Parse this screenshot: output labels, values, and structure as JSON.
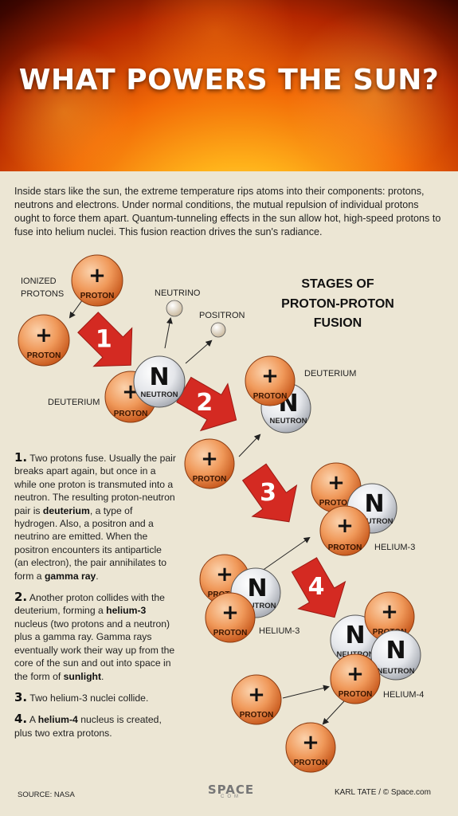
{
  "title": "WHAT POWERS THE SUN?",
  "intro": "Inside stars like the sun, the extreme temperature rips atoms into their components: protons, neutrons and electrons. Under normal conditions, the mutual repulsion of individual protons ought to force them apart. Quantum-tunneling effects in the sun allow hot, high-speed protons to fuse into helium nuclei. This fusion reaction drives the sun's radiance.",
  "stages_title": [
    "STAGES OF",
    "PROTON-PROTON",
    "FUSION"
  ],
  "particles": {
    "proton": "PROTON",
    "neutron": "NEUTRON",
    "plus": "+",
    "n": "N"
  },
  "labels": {
    "ionized_protons": [
      "IONIZED",
      "PROTONS"
    ],
    "neutrino": "NEUTRINO",
    "positron": "POSITRON",
    "deuterium_left": "DEUTERIUM",
    "deuterium_right": "DEUTERIUM",
    "helium3_a": "HELIUM-3",
    "helium3_b": "HELIUM-3",
    "helium4": "HELIUM-4"
  },
  "step_numbers": [
    "1",
    "2",
    "3",
    "4"
  ],
  "steps": {
    "s1": {
      "num": "1.",
      "t1": " Two protons fuse. Usually the pair breaks apart again, but once in a while one proton is transmuted into a neutron.  The resulting proton-neutron pair is ",
      "b1": "deuterium",
      "t2": ", a type of hydrogen. Also, a positron and a neutrino are emitted. When the positron encounters its antiparticle (an electron), the pair annihilates to form a ",
      "b2": "gamma ray",
      "t3": "."
    },
    "s2": {
      "num": "2.",
      "t1": " Another proton collides with the deuterium, forming a ",
      "b1": "helium-3",
      "t2": " nucleus (two protons and a neutron) plus a gamma ray. Gamma rays eventually work their way up from the core of the sun and out into space in the form of ",
      "b2": "sunlight",
      "t3": "."
    },
    "s3": {
      "num": "3.",
      "t1": " Two helium-3 nuclei collide."
    },
    "s4": {
      "num": "4.",
      "t1": " A ",
      "b1": "helium-4",
      "t2": " nucleus is created, plus two extra protons."
    }
  },
  "footer": {
    "source": "SOURCE: NASA",
    "logo_word": "SPACE",
    "logo_sub": "COM",
    "credit": "KARL TATE / © Space.com"
  },
  "colors": {
    "proton_light": "#f6b07a",
    "proton_dark": "#d9692a",
    "neutron_light": "#ffffff",
    "neutron_dark": "#b9bcc4",
    "arrow_red": "#d42a22",
    "background": "#ece6d4"
  }
}
